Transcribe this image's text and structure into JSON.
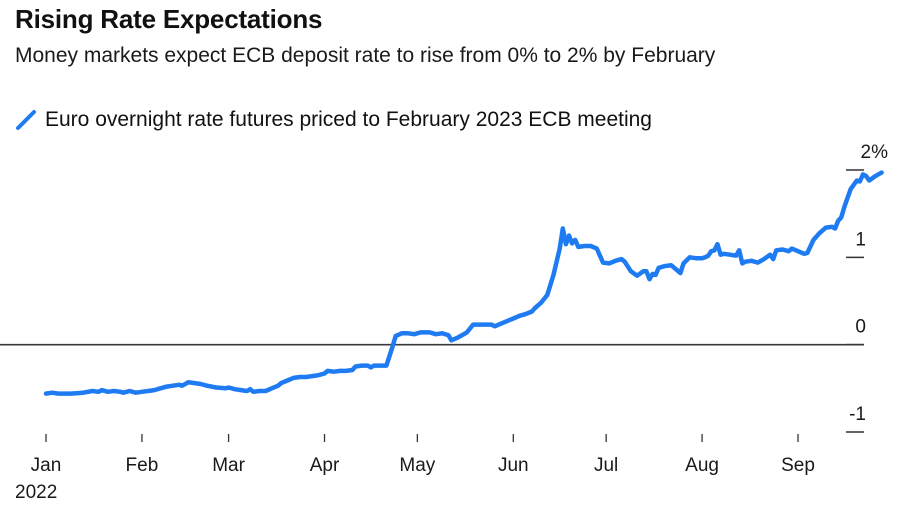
{
  "chart_data": {
    "type": "line",
    "title": "Rising Rate Expectations",
    "subtitle": "Money markets expect ECB deposit rate to rise from 0% to 2% by February",
    "xlabel": "",
    "ylabel": "",
    "ylim": [
      -1,
      2
    ],
    "y_ticks": [
      {
        "value": 2,
        "label": "2%"
      },
      {
        "value": 1,
        "label": "1"
      },
      {
        "value": 0,
        "label": "0"
      },
      {
        "value": -1,
        "label": "-1"
      }
    ],
    "x_ticks": [
      {
        "day": 0,
        "label": "Jan"
      },
      {
        "day": 31,
        "label": "Feb"
      },
      {
        "day": 59,
        "label": "Mar"
      },
      {
        "day": 90,
        "label": "Apr"
      },
      {
        "day": 120,
        "label": "May"
      },
      {
        "day": 151,
        "label": "Jun"
      },
      {
        "day": 181,
        "label": "Jul"
      },
      {
        "day": 212,
        "label": "Aug"
      },
      {
        "day": 243,
        "label": "Sep"
      }
    ],
    "x_year_label": "2022",
    "zero_line": true,
    "grid": false,
    "legend_position": "top-left",
    "series": [
      {
        "name": "Euro overnight rate futures priced to February 2023 ECB meeting",
        "color": "#1f7bf2",
        "x_unit": "days since 2022-01-01",
        "points": [
          [
            0,
            -0.56
          ],
          [
            2,
            -0.55
          ],
          [
            4,
            -0.56
          ],
          [
            8,
            -0.56
          ],
          [
            12,
            -0.55
          ],
          [
            15,
            -0.53
          ],
          [
            17,
            -0.54
          ],
          [
            18,
            -0.52
          ],
          [
            20,
            -0.54
          ],
          [
            22,
            -0.53
          ],
          [
            24,
            -0.54
          ],
          [
            25,
            -0.55
          ],
          [
            27,
            -0.53
          ],
          [
            29,
            -0.55
          ],
          [
            31,
            -0.54
          ],
          [
            33,
            -0.53
          ],
          [
            35,
            -0.52
          ],
          [
            37,
            -0.5
          ],
          [
            39,
            -0.48
          ],
          [
            41,
            -0.47
          ],
          [
            43,
            -0.46
          ],
          [
            44,
            -0.47
          ],
          [
            46,
            -0.43
          ],
          [
            48,
            -0.44
          ],
          [
            50,
            -0.45
          ],
          [
            52,
            -0.47
          ],
          [
            55,
            -0.49
          ],
          [
            58,
            -0.5
          ],
          [
            59,
            -0.49
          ],
          [
            61,
            -0.51
          ],
          [
            63,
            -0.52
          ],
          [
            65,
            -0.53
          ],
          [
            66,
            -0.51
          ],
          [
            67,
            -0.54
          ],
          [
            69,
            -0.53
          ],
          [
            71,
            -0.53
          ],
          [
            73,
            -0.5
          ],
          [
            75,
            -0.47
          ],
          [
            76,
            -0.44
          ],
          [
            78,
            -0.41
          ],
          [
            80,
            -0.38
          ],
          [
            82,
            -0.37
          ],
          [
            84,
            -0.37
          ],
          [
            86,
            -0.36
          ],
          [
            88,
            -0.35
          ],
          [
            90,
            -0.33
          ],
          [
            91,
            -0.3
          ],
          [
            93,
            -0.31
          ],
          [
            95,
            -0.3
          ],
          [
            97,
            -0.3
          ],
          [
            99,
            -0.29
          ],
          [
            100,
            -0.25
          ],
          [
            102,
            -0.24
          ],
          [
            104,
            -0.24
          ],
          [
            105,
            -0.26
          ],
          [
            106,
            -0.24
          ],
          [
            108,
            -0.24
          ],
          [
            110,
            -0.24
          ],
          [
            111,
            -0.13
          ],
          [
            112,
            -0.02
          ],
          [
            113,
            0.1
          ],
          [
            115,
            0.13
          ],
          [
            117,
            0.13
          ],
          [
            119,
            0.12
          ],
          [
            121,
            0.14
          ],
          [
            123,
            0.14
          ],
          [
            124,
            0.14
          ],
          [
            126,
            0.12
          ],
          [
            128,
            0.13
          ],
          [
            130,
            0.11
          ],
          [
            131,
            0.05
          ],
          [
            133,
            0.08
          ],
          [
            134,
            0.1
          ],
          [
            136,
            0.14
          ],
          [
            138,
            0.23
          ],
          [
            140,
            0.23
          ],
          [
            142,
            0.23
          ],
          [
            144,
            0.23
          ],
          [
            145,
            0.21
          ],
          [
            147,
            0.24
          ],
          [
            149,
            0.27
          ],
          [
            151,
            0.3
          ],
          [
            153,
            0.33
          ],
          [
            155,
            0.35
          ],
          [
            157,
            0.38
          ],
          [
            158,
            0.42
          ],
          [
            160,
            0.48
          ],
          [
            162,
            0.57
          ],
          [
            164,
            0.8
          ],
          [
            166,
            1.1
          ],
          [
            167,
            1.33
          ],
          [
            168,
            1.15
          ],
          [
            169,
            1.25
          ],
          [
            170,
            1.16
          ],
          [
            171,
            1.2
          ],
          [
            172,
            1.12
          ],
          [
            174,
            1.13
          ],
          [
            176,
            1.13
          ],
          [
            178,
            1.1
          ],
          [
            180,
            0.94
          ],
          [
            182,
            0.93
          ],
          [
            184,
            0.96
          ],
          [
            186,
            0.98
          ],
          [
            187,
            0.95
          ],
          [
            189,
            0.84
          ],
          [
            191,
            0.79
          ],
          [
            193,
            0.84
          ],
          [
            194,
            0.84
          ],
          [
            195,
            0.75
          ],
          [
            196,
            0.81
          ],
          [
            197,
            0.8
          ],
          [
            198,
            0.88
          ],
          [
            200,
            0.9
          ],
          [
            202,
            0.91
          ],
          [
            204,
            0.85
          ],
          [
            205,
            0.82
          ],
          [
            206,
            0.93
          ],
          [
            208,
            1.0
          ],
          [
            210,
            0.99
          ],
          [
            212,
            0.99
          ],
          [
            213,
            1.0
          ],
          [
            214,
            1.02
          ],
          [
            215,
            1.07
          ],
          [
            216,
            1.08
          ],
          [
            217,
            1.15
          ],
          [
            218,
            1.03
          ],
          [
            219,
            1.04
          ],
          [
            221,
            1.03
          ],
          [
            223,
            1.02
          ],
          [
            224,
            1.08
          ],
          [
            225,
            0.93
          ],
          [
            226,
            0.95
          ],
          [
            228,
            0.96
          ],
          [
            230,
            0.94
          ],
          [
            232,
            0.98
          ],
          [
            234,
            1.03
          ],
          [
            235,
            0.98
          ],
          [
            236,
            1.08
          ],
          [
            238,
            1.09
          ],
          [
            240,
            1.07
          ],
          [
            241,
            1.1
          ],
          [
            243,
            1.07
          ],
          [
            245,
            1.04
          ],
          [
            246,
            1.05
          ],
          [
            248,
            1.2
          ],
          [
            250,
            1.28
          ],
          [
            252,
            1.34
          ],
          [
            254,
            1.35
          ],
          [
            255,
            1.33
          ],
          [
            256,
            1.42
          ],
          [
            257,
            1.46
          ],
          [
            258,
            1.58
          ],
          [
            260,
            1.78
          ],
          [
            262,
            1.88
          ],
          [
            263,
            1.87
          ],
          [
            264,
            1.95
          ],
          [
            265,
            1.93
          ],
          [
            266,
            1.88
          ],
          [
            268,
            1.93
          ],
          [
            270,
            1.97
          ]
        ]
      }
    ]
  }
}
